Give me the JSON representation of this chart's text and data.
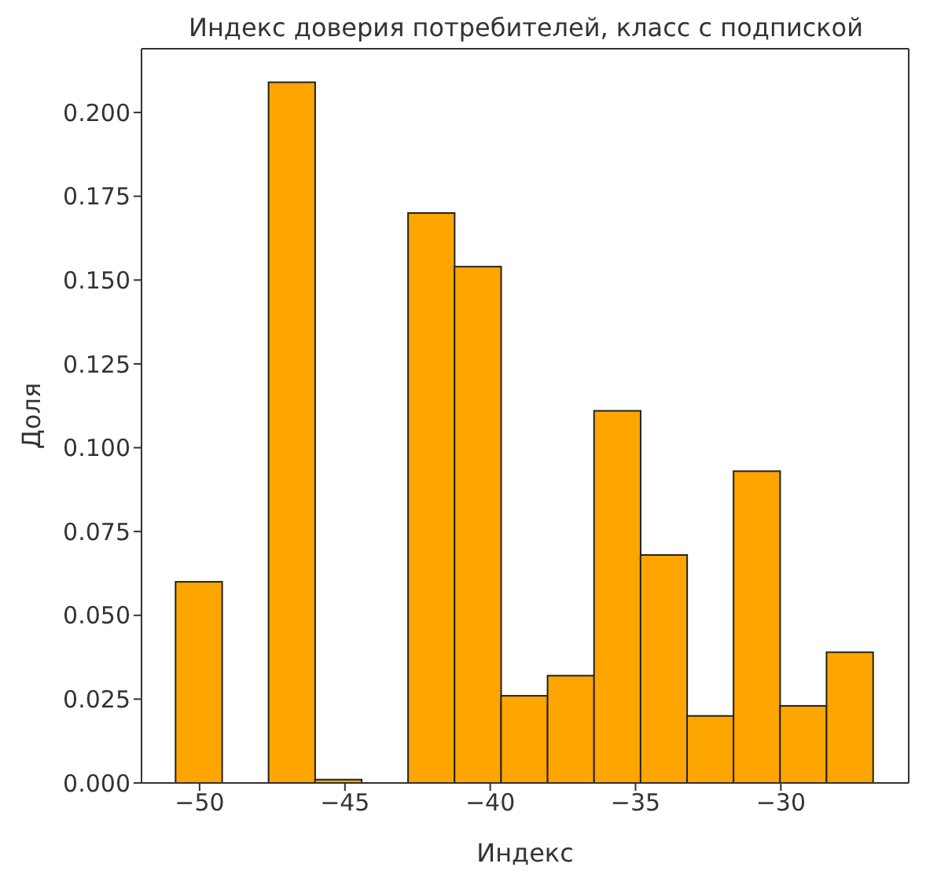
{
  "chart_data": {
    "type": "histogram",
    "title": "Индекс доверия потребителей, класс с подпиской",
    "xlabel": "Индекс",
    "ylabel": "Доля",
    "bins": [
      -50.8,
      -49.2,
      -47.6,
      -46.0,
      -44.4,
      -42.8,
      -41.2,
      -39.6,
      -38.0,
      -36.4,
      -34.8,
      -33.2,
      -31.6,
      -30.0,
      -28.4,
      -26.8
    ],
    "values": [
      0.06,
      0,
      0.209,
      0.001,
      0,
      0.17,
      0.154,
      0.026,
      0.032,
      0.111,
      0.068,
      0.02,
      0.093,
      0.023,
      0.039
    ],
    "color": "#ffa500",
    "xlim": [
      -52.0,
      -25.6
    ],
    "xticks": [
      {
        "value": -50,
        "label": "−50"
      },
      {
        "value": -45,
        "label": "−45"
      },
      {
        "value": -40,
        "label": "−40"
      },
      {
        "value": -35,
        "label": "−35"
      },
      {
        "value": -30,
        "label": "−30"
      }
    ],
    "ylim": [
      0,
      0.219
    ],
    "yticks": [
      {
        "value": 0,
        "label": "0.000"
      },
      {
        "value": 0.025,
        "label": "0.025"
      },
      {
        "value": 0.05,
        "label": "0.050"
      },
      {
        "value": 0.075,
        "label": "0.075"
      },
      {
        "value": 0.1,
        "label": "0.100"
      },
      {
        "value": 0.125,
        "label": "0.125"
      },
      {
        "value": 0.15,
        "label": "0.150"
      },
      {
        "value": 0.175,
        "label": "0.175"
      },
      {
        "value": 0.2,
        "label": "0.200"
      }
    ]
  }
}
